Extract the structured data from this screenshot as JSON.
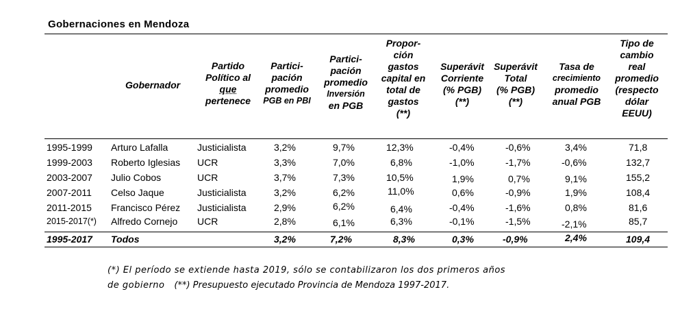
{
  "title": "Gobernaciones  en Mendoza",
  "headers": {
    "gobernador": "Gobernador",
    "partido": [
      "Partido",
      "Político al",
      "que",
      "pertenece"
    ],
    "participacion": [
      "Partici-",
      "pación",
      "promedio",
      "PGB en PBI"
    ],
    "inversion": [
      "Partici-",
      "pación",
      "promedio",
      "Inversión",
      "en PGB"
    ],
    "proporcion": [
      "Propor-",
      "ción",
      "gastos",
      "capital en",
      "total de",
      "gastos",
      "(**)"
    ],
    "sup_corriente": [
      "Superávit",
      "Corriente",
      "(% PGB)",
      "(**)"
    ],
    "sup_total": [
      "Superávit",
      "Total",
      "(% PGB)",
      "(**)"
    ],
    "tasa": [
      "Tasa de",
      "crecimiento",
      "promedio",
      "anual PGB"
    ],
    "tipo_cambio": [
      "Tipo de",
      "cambio",
      "real",
      "promedio",
      "(respecto",
      "dólar",
      "EEUU)"
    ]
  },
  "rows": [
    {
      "periodo": "1995-1999",
      "gobernador": "Arturo Lafalla",
      "partido": "Justicialista",
      "pgb_pbi": "3,2%",
      "inversion": "9,7%",
      "proporcion": "12,3%",
      "sup_corriente": "-0,4%",
      "sup_total": "-0,6%",
      "tasa": "3,4%",
      "tipo_cambio": "71,8"
    },
    {
      "periodo": "1999-2003",
      "gobernador": "Roberto Iglesias",
      "partido": "UCR",
      "pgb_pbi": "3,3%",
      "inversion": "7,0%",
      "proporcion": "6,8%",
      "sup_corriente": "-1,0%",
      "sup_total": "-1,7%",
      "tasa": "-0,6%",
      "tipo_cambio": "132,7"
    },
    {
      "periodo": "2003-2007",
      "gobernador": "Julio Cobos",
      "partido": "UCR",
      "pgb_pbi": "3,7%",
      "inversion": "7,3%",
      "proporcion": "10,5%",
      "sup_corriente": "1,9%",
      "sup_total": "0,7%",
      "tasa": "9,1%",
      "tipo_cambio": "155,2"
    },
    {
      "periodo": "2007-2011",
      "gobernador": "Celso Jaque",
      "partido": "Justicialista",
      "pgb_pbi": "3,2%",
      "inversion": "6,2%",
      "proporcion": "11,0%",
      "sup_corriente": "0,6%",
      "sup_total": "-0,9%",
      "tasa": "1,9%",
      "tipo_cambio": "108,4"
    },
    {
      "periodo": "2011-2015",
      "gobernador": "Francisco Pérez",
      "partido": "Justicialista",
      "pgb_pbi": "2,9%",
      "inversion": "6,2%",
      "proporcion": "6,4%",
      "sup_corriente": "-0,4%",
      "sup_total": "-1,6%",
      "tasa": "0,8%",
      "tipo_cambio": "81,6"
    },
    {
      "periodo": "2015-2017(*)",
      "gobernador": "Alfredo Cornejo",
      "partido": "UCR",
      "pgb_pbi": "2,8%",
      "inversion": "6,1%",
      "proporcion": "6,3%",
      "sup_corriente": "-0,1%",
      "sup_total": "-1,5%",
      "tasa": "-2,1%",
      "tipo_cambio": "85,7"
    }
  ],
  "total": {
    "periodo": "1995-2017",
    "gobernador": "Todos",
    "pgb_pbi": "3,2%",
    "inversion": "7,2%",
    "proporcion": "8,3%",
    "sup_corriente": "0,3%",
    "sup_total": "-0,9%",
    "tasa": "2,4%",
    "tipo_cambio": "109,4"
  },
  "notes": {
    "line1": "(*) El período se extiende hasta 2019, sólo se contabilizaron los dos primeros años",
    "line2a": "de gobierno",
    "line2b": "(**) Presupuesto ejecutado Provincia de Mendoza 1997-2017."
  }
}
